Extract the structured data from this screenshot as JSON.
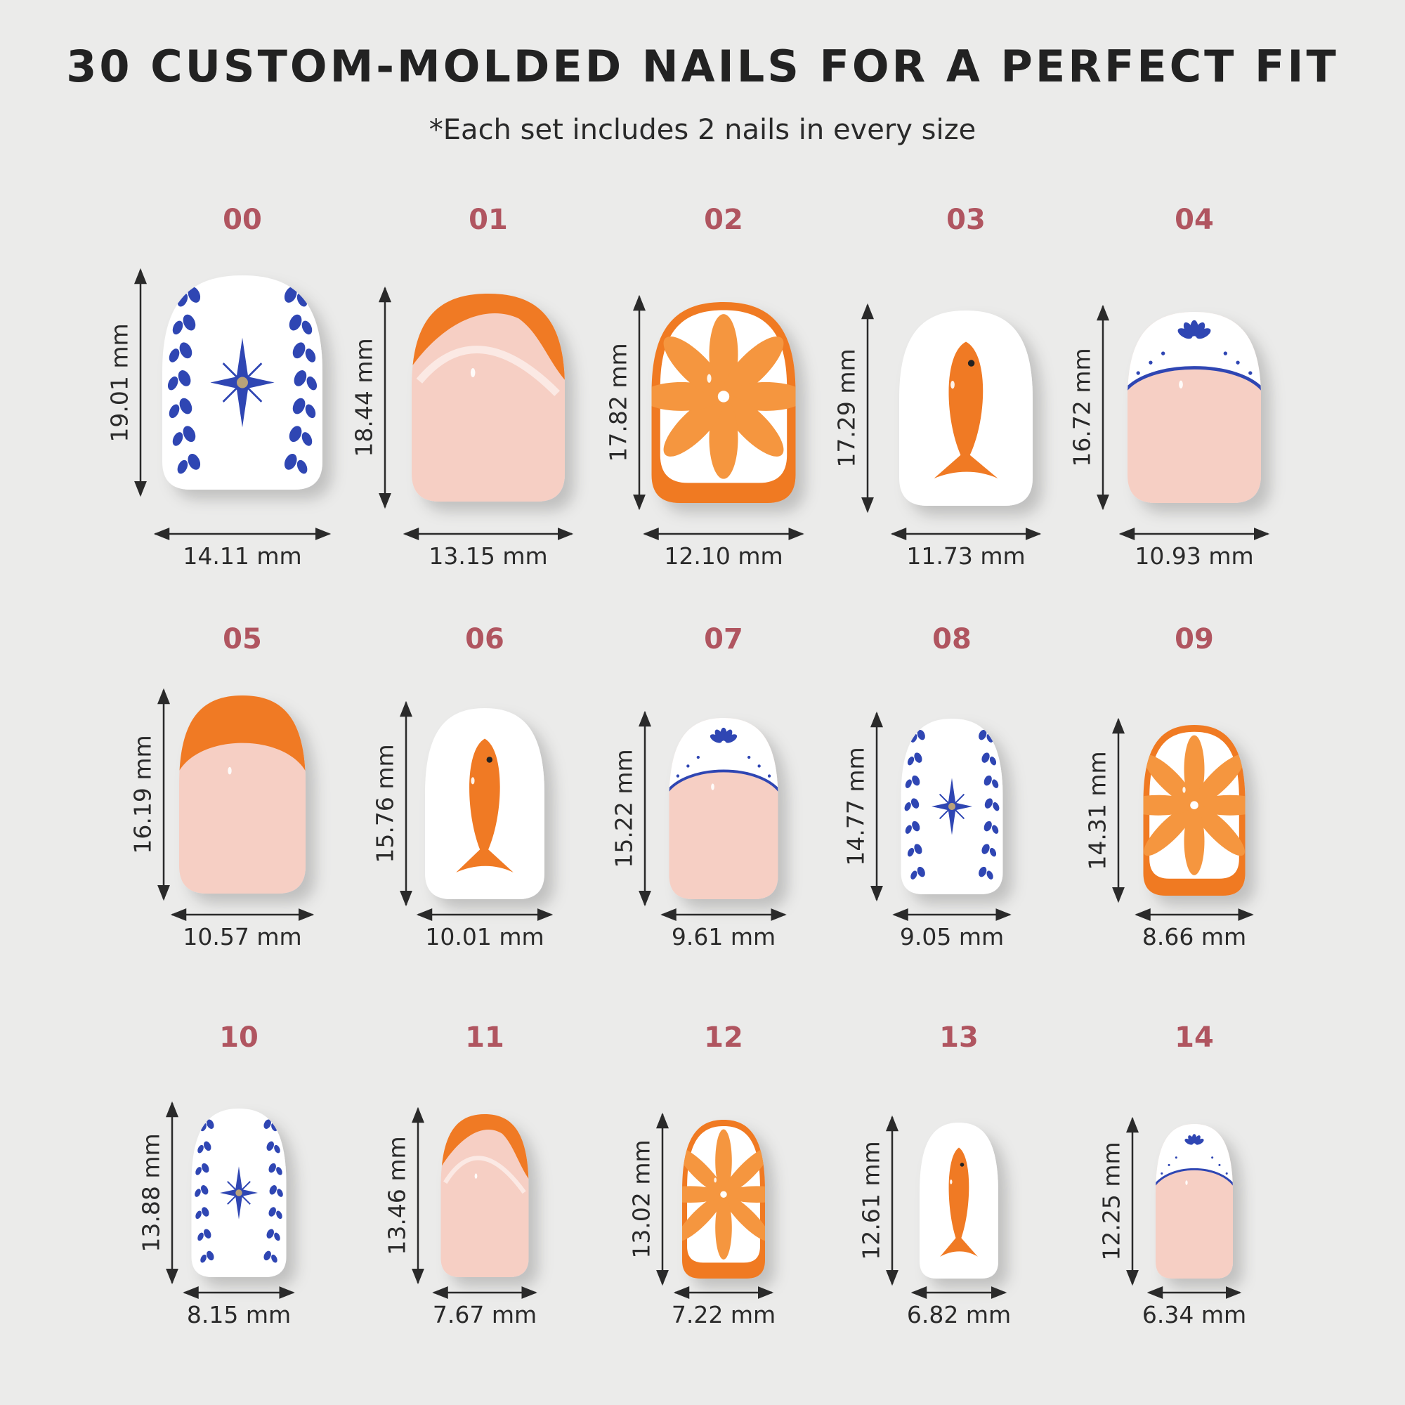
{
  "title": "30 CUSTOM-MOLDED NAILS FOR A PERFECT FIT",
  "subtitle": "*Each set includes 2 nails in every size",
  "colors": {
    "label": "#b05560",
    "blue": "#2f46b3",
    "orange": "#f07a24",
    "nail_pink": "#f6cfc4",
    "white": "#ffffff"
  },
  "nails": [
    {
      "id": "00",
      "length": "19.01 mm",
      "width": "14.11 mm",
      "design": "vine-star-icon"
    },
    {
      "id": "01",
      "length": "18.44 mm",
      "width": "13.15 mm",
      "design": "orange-swoop-icon"
    },
    {
      "id": "02",
      "length": "17.82 mm",
      "width": "12.10 mm",
      "design": "orange-slice-icon"
    },
    {
      "id": "03",
      "length": "17.29 mm",
      "width": "11.73 mm",
      "design": "fish-icon"
    },
    {
      "id": "04",
      "length": "16.72 mm",
      "width": "10.93 mm",
      "design": "blue-french-tip-icon"
    },
    {
      "id": "05",
      "length": "16.19 mm",
      "width": "10.57 mm",
      "design": "orange-french-tip-icon"
    },
    {
      "id": "06",
      "length": "15.76 mm",
      "width": "10.01 mm",
      "design": "fish-icon"
    },
    {
      "id": "07",
      "length": "15.22 mm",
      "width": "9.61 mm",
      "design": "blue-french-tip-icon"
    },
    {
      "id": "08",
      "length": "14.77 mm",
      "width": "9.05 mm",
      "design": "vine-star-icon"
    },
    {
      "id": "09",
      "length": "14.31 mm",
      "width": "8.66 mm",
      "design": "orange-slice-icon"
    },
    {
      "id": "10",
      "length": "13.88 mm",
      "width": "8.15 mm",
      "design": "vine-star-icon"
    },
    {
      "id": "11",
      "length": "13.46 mm",
      "width": "7.67 mm",
      "design": "orange-swoop-icon"
    },
    {
      "id": "12",
      "length": "13.02 mm",
      "width": "7.22 mm",
      "design": "orange-slice-icon"
    },
    {
      "id": "13",
      "length": "12.61 mm",
      "width": "6.82 mm",
      "design": "fish-icon"
    },
    {
      "id": "14",
      "length": "12.25 mm",
      "width": "6.34 mm",
      "design": "blue-french-tip-icon"
    }
  ]
}
